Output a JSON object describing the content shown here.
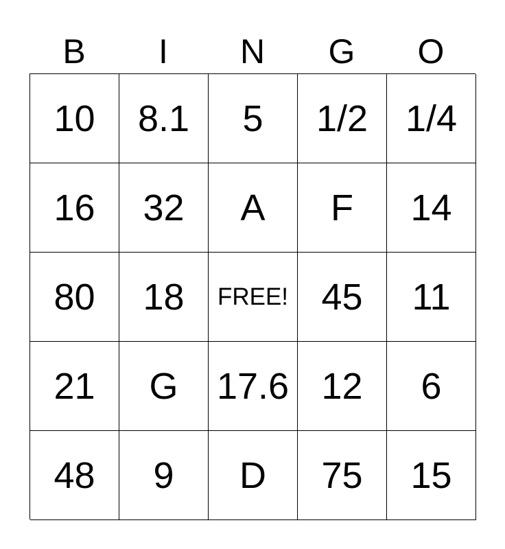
{
  "header": [
    "B",
    "I",
    "N",
    "G",
    "O"
  ],
  "rows": [
    [
      "10",
      "8.1",
      "5",
      "1/2",
      "1/4"
    ],
    [
      "16",
      "32",
      "A",
      "F",
      "14"
    ],
    [
      "80",
      "18",
      "FREE!",
      "45",
      "11"
    ],
    [
      "21",
      "G",
      "17.6",
      "12",
      "6"
    ],
    [
      "48",
      "9",
      "D",
      "75",
      "15"
    ]
  ]
}
